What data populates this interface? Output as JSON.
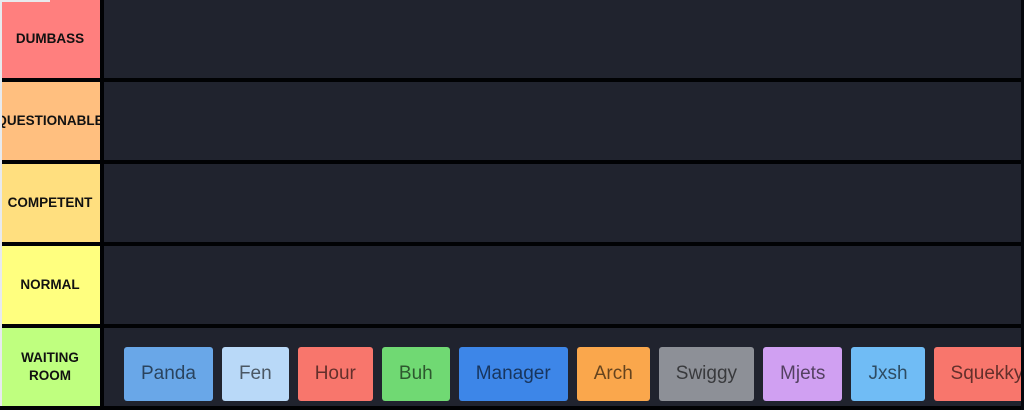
{
  "board": {
    "rows": [
      {
        "label": "DUMBASS",
        "color": "#ff7f7e",
        "items": []
      },
      {
        "label": "QUESTIONABLE",
        "color": "#ffbf7f",
        "items": []
      },
      {
        "label": "COMPETENT",
        "color": "#ffdf7f",
        "items": []
      },
      {
        "label": "NORMAL",
        "color": "#ffff7f",
        "items": []
      },
      {
        "label": "WAITING ROOM",
        "color": "#bfff7f",
        "items": [
          {
            "label": "Panda",
            "color": "#69a7e8"
          },
          {
            "label": "Fen",
            "color": "#b9d9f8"
          },
          {
            "label": "Hour",
            "color": "#f8766c"
          },
          {
            "label": "Buh",
            "color": "#70d973"
          },
          {
            "label": "Manager",
            "color": "#3d86e8"
          },
          {
            "label": "Arch",
            "color": "#faa74c"
          },
          {
            "label": "Swiggy",
            "color": "#8d9097"
          },
          {
            "label": "Mjets",
            "color": "#d0a0f2"
          },
          {
            "label": "Jxsh",
            "color": "#70bcf5"
          },
          {
            "label": "Squekky",
            "color": "#f8766c"
          }
        ]
      }
    ],
    "palette": {
      "row_background": "#20232e",
      "separator": "#010204",
      "edge_highlight": "#e8eaed",
      "label_text": "#111111",
      "item_text": "rgba(0,0,0,0.6)"
    }
  }
}
